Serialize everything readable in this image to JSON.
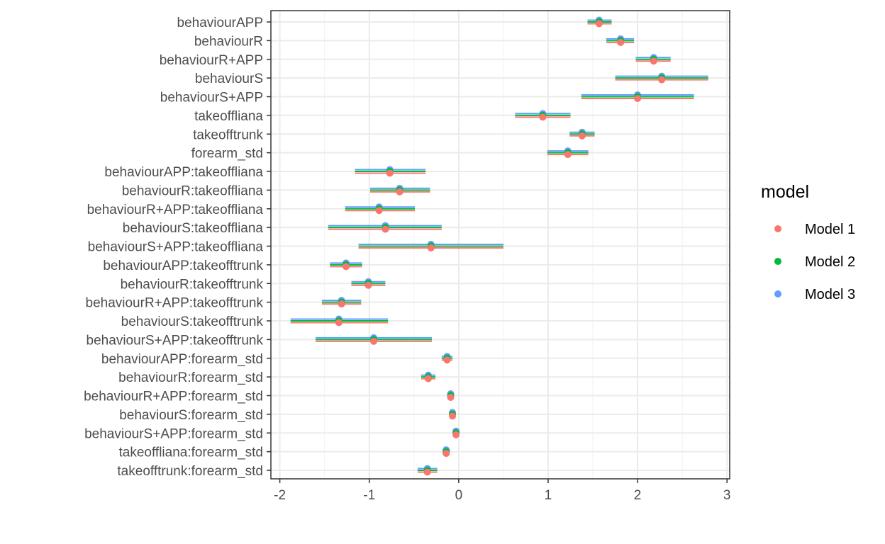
{
  "chart_data": {
    "type": "scatter",
    "subtype": "coefficient-plot-with-intervals",
    "title": "",
    "xlabel": "",
    "ylabel": "",
    "xlim": [
      -2.1,
      3.03
    ],
    "x_ticks": [
      -2,
      -1,
      0,
      1,
      2,
      3
    ],
    "x_tick_labels": [
      "-2",
      "-1",
      "0",
      "1",
      "2",
      "3"
    ],
    "grid": true,
    "legend": {
      "title": "model",
      "position": "right"
    },
    "terms": [
      "behaviourAPP",
      "behaviourR",
      "behaviourR+APP",
      "behaviourS",
      "behaviourS+APP",
      "takeoffliana",
      "takeofftrunk",
      "forearm_std",
      "behaviourAPP:takeoffliana",
      "behaviourR:takeoffliana",
      "behaviourR+APP:takeoffliana",
      "behaviourS:takeoffliana",
      "behaviourS+APP:takeoffliana",
      "behaviourAPP:takeofftrunk",
      "behaviourR:takeofftrunk",
      "behaviourR+APP:takeofftrunk",
      "behaviourS:takeofftrunk",
      "behaviourS+APP:takeofftrunk",
      "behaviourAPP:forearm_std",
      "behaviourR:forearm_std",
      "behaviourR+APP:forearm_std",
      "behaviourS:forearm_std",
      "behaviourS+APP:forearm_std",
      "takeoffliana:forearm_std",
      "takeofftrunk:forearm_std"
    ],
    "series": [
      {
        "name": "Model 1",
        "color": "#F8766D",
        "estimate": [
          1.57,
          1.81,
          2.18,
          2.27,
          2.0,
          0.94,
          1.38,
          1.22,
          -0.77,
          -0.66,
          -0.89,
          -0.82,
          -0.31,
          -1.26,
          -1.01,
          -1.31,
          -1.34,
          -0.95,
          -0.13,
          -0.34,
          -0.09,
          -0.07,
          -0.03,
          -0.14,
          -0.35
        ],
        "lower": [
          1.44,
          1.65,
          1.98,
          1.75,
          1.37,
          0.63,
          1.24,
          0.99,
          -1.16,
          -0.99,
          -1.27,
          -1.46,
          -1.12,
          -1.44,
          -1.2,
          -1.53,
          -1.88,
          -1.6,
          -0.19,
          -0.42,
          -0.12,
          -0.09,
          -0.05,
          -0.18,
          -0.46
        ],
        "upper": [
          1.71,
          1.96,
          2.37,
          2.79,
          2.63,
          1.25,
          1.52,
          1.45,
          -0.37,
          -0.32,
          -0.49,
          -0.19,
          0.5,
          -1.08,
          -0.82,
          -1.09,
          -0.79,
          -0.3,
          -0.07,
          -0.26,
          -0.06,
          -0.05,
          -0.01,
          -0.1,
          -0.24
        ]
      },
      {
        "name": "Model 2",
        "color": "#00BA38",
        "estimate": [
          1.57,
          1.81,
          2.18,
          2.27,
          2.0,
          0.94,
          1.38,
          1.22,
          -0.77,
          -0.66,
          -0.89,
          -0.82,
          -0.31,
          -1.26,
          -1.01,
          -1.31,
          -1.34,
          -0.95,
          -0.13,
          -0.34,
          -0.09,
          -0.07,
          -0.03,
          -0.14,
          -0.35
        ],
        "lower": [
          1.44,
          1.65,
          1.98,
          1.75,
          1.37,
          0.63,
          1.24,
          0.99,
          -1.16,
          -0.99,
          -1.27,
          -1.46,
          -1.12,
          -1.44,
          -1.2,
          -1.53,
          -1.88,
          -1.6,
          -0.19,
          -0.42,
          -0.12,
          -0.09,
          -0.05,
          -0.18,
          -0.46
        ],
        "upper": [
          1.71,
          1.96,
          2.37,
          2.79,
          2.63,
          1.25,
          1.52,
          1.45,
          -0.37,
          -0.32,
          -0.49,
          -0.19,
          0.5,
          -1.08,
          -0.82,
          -1.09,
          -0.79,
          -0.3,
          -0.07,
          -0.26,
          -0.06,
          -0.05,
          -0.01,
          -0.1,
          -0.24
        ]
      },
      {
        "name": "Model 3",
        "color": "#619CFF",
        "estimate": [
          1.57,
          1.81,
          2.18,
          2.27,
          2.0,
          0.94,
          1.38,
          1.22,
          -0.77,
          -0.66,
          -0.89,
          -0.82,
          -0.31,
          -1.26,
          -1.01,
          -1.31,
          -1.34,
          -0.95,
          -0.13,
          -0.34,
          -0.09,
          -0.07,
          -0.03,
          -0.14,
          -0.35
        ],
        "lower": [
          1.44,
          1.65,
          1.98,
          1.75,
          1.37,
          0.63,
          1.24,
          0.99,
          -1.16,
          -0.99,
          -1.27,
          -1.46,
          -1.12,
          -1.44,
          -1.2,
          -1.53,
          -1.88,
          -1.6,
          -0.19,
          -0.42,
          -0.12,
          -0.09,
          -0.05,
          -0.18,
          -0.46
        ],
        "upper": [
          1.71,
          1.96,
          2.37,
          2.79,
          2.63,
          1.25,
          1.52,
          1.45,
          -0.37,
          -0.32,
          -0.49,
          -0.19,
          0.5,
          -1.08,
          -0.82,
          -1.09,
          -0.79,
          -0.3,
          -0.07,
          -0.26,
          -0.06,
          -0.05,
          -0.01,
          -0.1,
          -0.24
        ]
      }
    ]
  }
}
